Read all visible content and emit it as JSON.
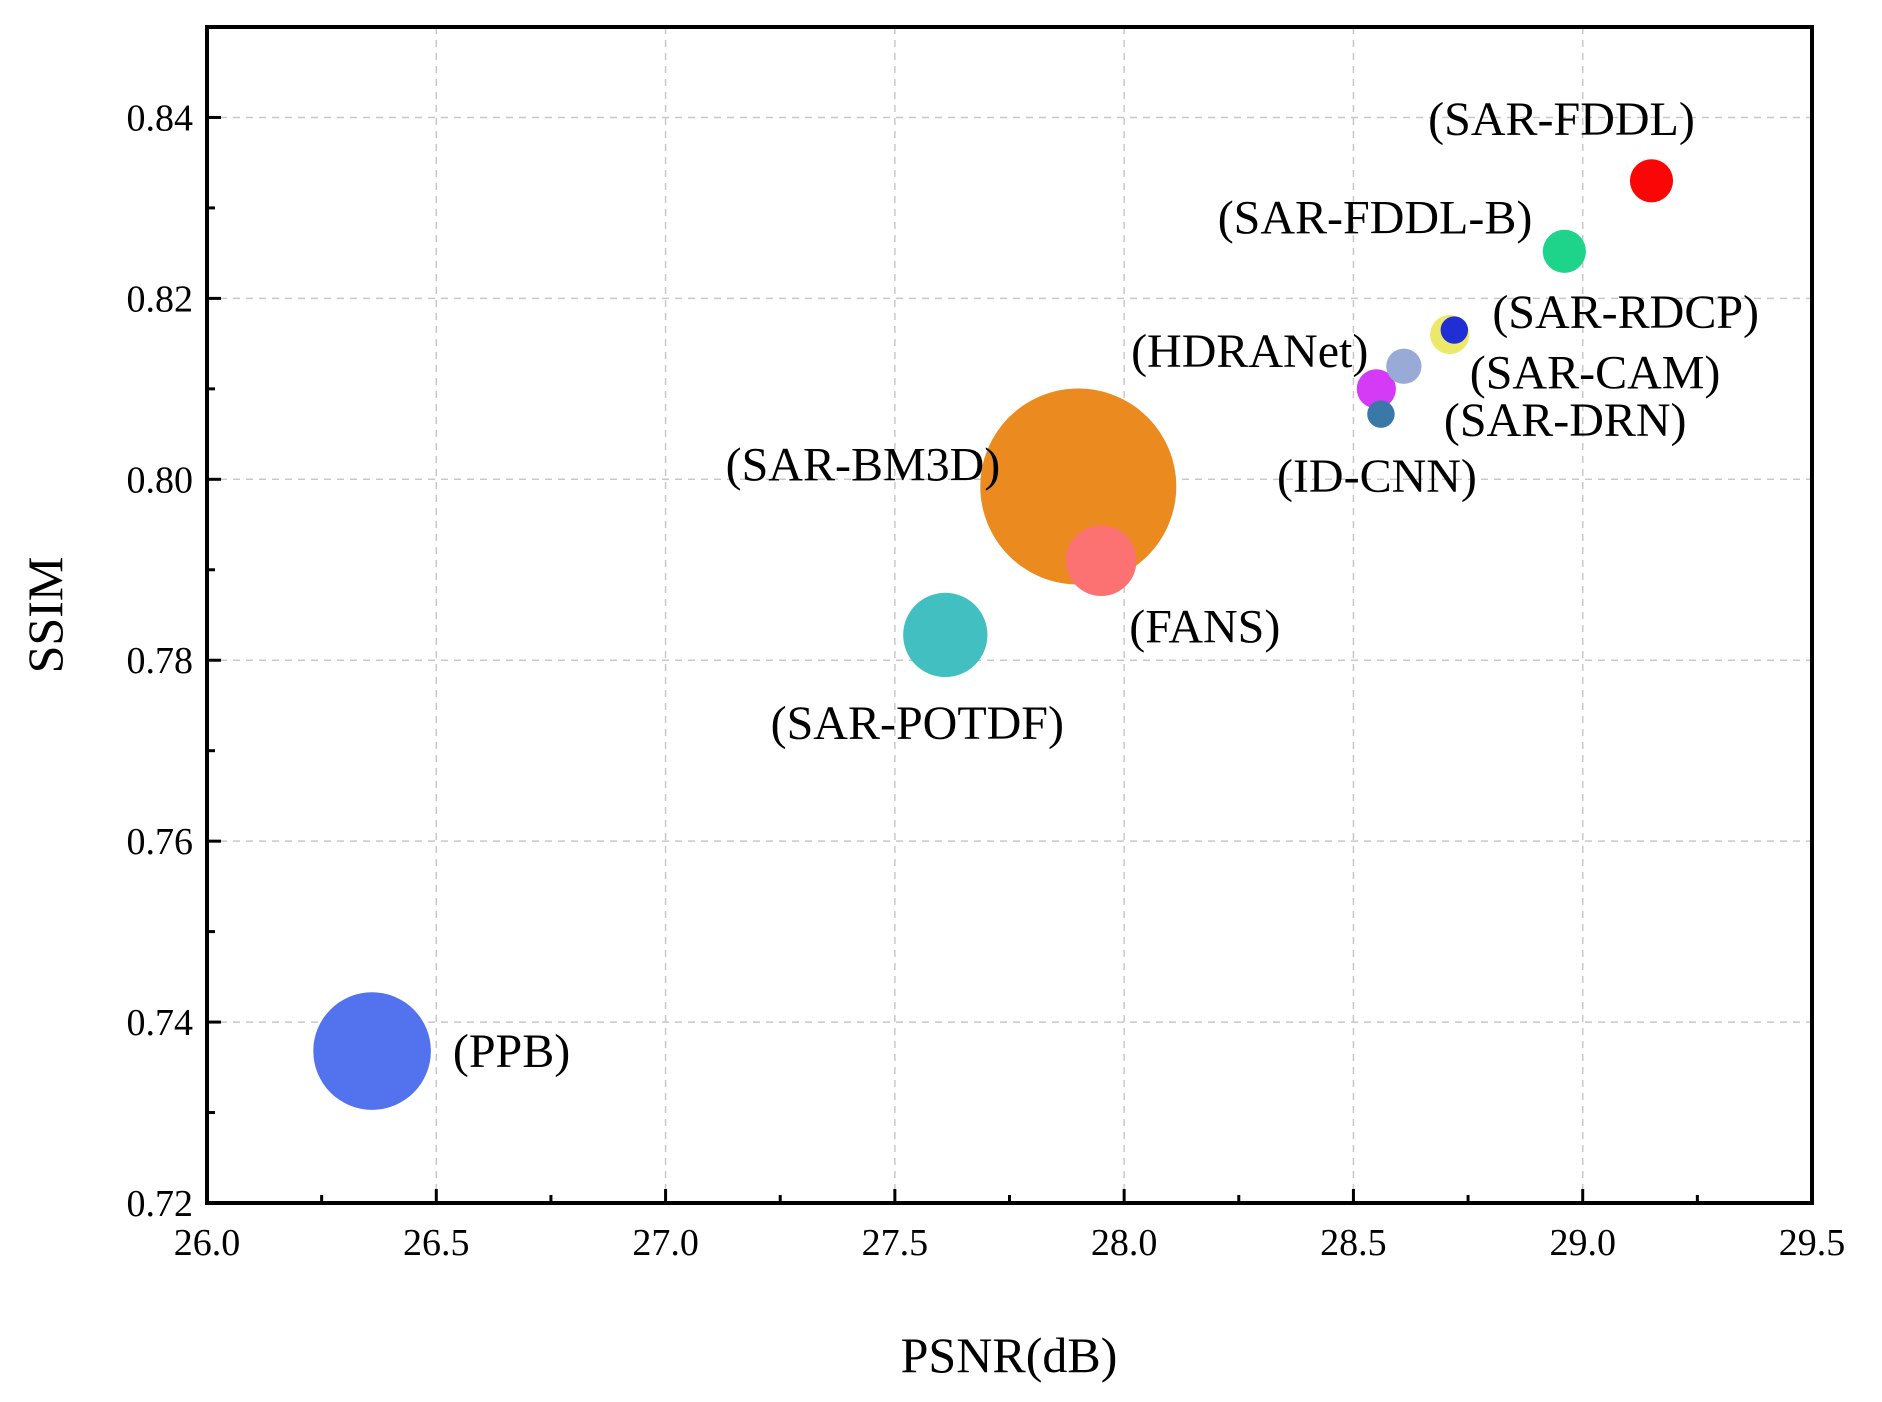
{
  "chart_data": {
    "type": "scatter",
    "subtype": "bubble",
    "xlabel": "PSNR(dB)",
    "ylabel": "SSIM",
    "xlim": [
      26.0,
      29.5
    ],
    "ylim": [
      0.72,
      0.85
    ],
    "xticks": [
      "26.0",
      "26.5",
      "27.0",
      "27.5",
      "28.0",
      "28.5",
      "29.0",
      "29.5"
    ],
    "xtick_values": [
      26.0,
      26.5,
      27.0,
      27.5,
      28.0,
      28.5,
      29.0,
      29.5
    ],
    "yticks": [
      "0.72",
      "0.74",
      "0.76",
      "0.78",
      "0.80",
      "0.82",
      "0.84"
    ],
    "ytick_values": [
      0.72,
      0.74,
      0.76,
      0.78,
      0.8,
      0.82,
      0.84
    ],
    "grid": true,
    "points": [
      {
        "label": "(PPB)",
        "x": 26.36,
        "y": 0.7368,
        "size": 60,
        "color": "#5272ee",
        "label_pos": "right"
      },
      {
        "label": "(SAR-BM3D)",
        "x": 27.9,
        "y": 0.7992,
        "size": 100,
        "color": "#ea8a1f",
        "label_pos": "upper-left"
      },
      {
        "label": "(SAR-POTDF)",
        "x": 27.61,
        "y": 0.7828,
        "size": 43,
        "color": "#42bfc1",
        "label_pos": "below"
      },
      {
        "label": "(FANS)",
        "x": 27.95,
        "y": 0.791,
        "size": 36,
        "color": "#fc7171",
        "label_pos": "lower-right"
      },
      {
        "label": "(ID-CNN)",
        "x": 28.56,
        "y": 0.8072,
        "size": 14,
        "color": "#3a78a8",
        "label_pos": "below"
      },
      {
        "label": "(SAR-DRN)",
        "x": 28.61,
        "y": 0.8125,
        "size": 18,
        "color": "#9aaad6",
        "label_pos": "lower-right"
      },
      {
        "label": "(HDRANet)",
        "x": 28.55,
        "y": 0.81,
        "size": 20,
        "color": "#d53af7",
        "label_pos": "upper-left"
      },
      {
        "label": "(SAR-RDCP)",
        "x": 28.72,
        "y": 0.8165,
        "size": 14,
        "color": "#1f2fd4",
        "label_pos": "right"
      },
      {
        "label": "(SAR-CAM)",
        "x": 28.71,
        "y": 0.816,
        "size": 20,
        "color": "#ece86a",
        "label_pos": "lower-right"
      },
      {
        "label": "(SAR-FDDL-B)",
        "x": 28.96,
        "y": 0.8252,
        "size": 22,
        "color": "#1ed48a",
        "label_pos": "upper-left"
      },
      {
        "label": "(SAR-FDDL)",
        "x": 29.15,
        "y": 0.833,
        "size": 22,
        "color": "#fb0606",
        "label_pos": "above"
      }
    ]
  }
}
